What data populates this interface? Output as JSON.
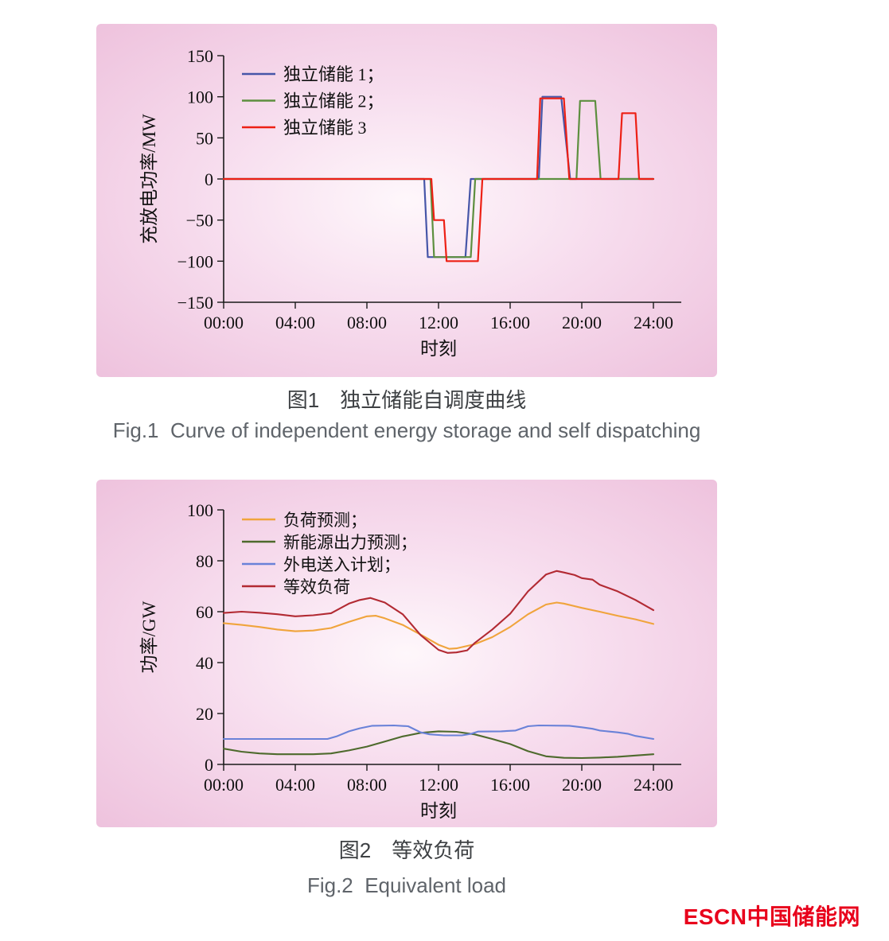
{
  "figures": [
    {
      "caption_cn": "图1　独立储能自调度曲线",
      "caption_en": "Fig.1  Curve of independent energy storage and self dispatching"
    },
    {
      "caption_cn": "图2　等效负荷",
      "caption_en": "Fig.2  Equivalent load"
    }
  ],
  "logo": {
    "latin": "ESCN",
    "cn": "中国储能网",
    "color": "#e8001b"
  },
  "chart_data": [
    {
      "type": "line",
      "title": "",
      "xlabel": "时刻",
      "ylabel": "充放电功率/MW",
      "xlim": [
        0,
        24
      ],
      "ylim": [
        -150,
        150
      ],
      "xticks": [
        0,
        4,
        8,
        12,
        16,
        20,
        24
      ],
      "xtick_labels": [
        "00:00",
        "04:00",
        "08:00",
        "12:00",
        "16:00",
        "20:00",
        "24:00"
      ],
      "yticks": [
        -150,
        -100,
        -50,
        0,
        50,
        100,
        150
      ],
      "ytick_labels": [
        "−150",
        "−100",
        "−50",
        "0",
        "50",
        "100",
        "150"
      ],
      "grid": false,
      "legend_position": "top-left",
      "background": {
        "center": "#fef7fb",
        "mid": "#f7ddee",
        "edge": "#eec2dd"
      },
      "series": [
        {
          "name": "独立储能 1；",
          "color": "#4656a8",
          "points": [
            [
              0,
              0
            ],
            [
              11.2,
              0
            ],
            [
              11.4,
              -95
            ],
            [
              13.5,
              -95
            ],
            [
              13.8,
              0
            ],
            [
              17.6,
              0
            ],
            [
              17.8,
              100
            ],
            [
              18.85,
              100
            ],
            [
              19.35,
              0
            ],
            [
              24,
              0
            ]
          ]
        },
        {
          "name": "独立储能 2；",
          "color": "#5d8f3f",
          "points": [
            [
              0,
              0
            ],
            [
              11.55,
              0
            ],
            [
              11.75,
              -95
            ],
            [
              13.8,
              -95
            ],
            [
              14.05,
              0
            ],
            [
              19.7,
              0
            ],
            [
              19.9,
              95
            ],
            [
              20.75,
              95
            ],
            [
              21.05,
              0
            ],
            [
              24,
              0
            ]
          ]
        },
        {
          "name": "独立储能 3",
          "color": "#ed2015",
          "points": [
            [
              0,
              0
            ],
            [
              11.6,
              0
            ],
            [
              11.75,
              -50
            ],
            [
              12.3,
              -50
            ],
            [
              12.45,
              -100
            ],
            [
              14.2,
              -100
            ],
            [
              14.45,
              0
            ],
            [
              17.5,
              0
            ],
            [
              17.68,
              98
            ],
            [
              19.0,
              98
            ],
            [
              19.3,
              0
            ],
            [
              22.05,
              0
            ],
            [
              22.25,
              80
            ],
            [
              23.0,
              80
            ],
            [
              23.2,
              0
            ],
            [
              24,
              0
            ]
          ]
        }
      ]
    },
    {
      "type": "line",
      "title": "",
      "xlabel": "时刻",
      "ylabel": "功率/GW",
      "xlim": [
        0,
        24
      ],
      "ylim": [
        0,
        100
      ],
      "xticks": [
        0,
        4,
        8,
        12,
        16,
        20,
        24
      ],
      "xtick_labels": [
        "00:00",
        "04:00",
        "08:00",
        "12:00",
        "16:00",
        "20:00",
        "24:00"
      ],
      "yticks": [
        0,
        20,
        40,
        60,
        80,
        100
      ],
      "ytick_labels": [
        "0",
        "20",
        "40",
        "60",
        "80",
        "100"
      ],
      "grid": false,
      "legend_position": "top-left",
      "background": {
        "center": "#fef7fb",
        "mid": "#f7ddee",
        "edge": "#eec2dd"
      },
      "series": [
        {
          "name": "负荷预测；",
          "color": "#f0a43c",
          "points": [
            [
              0,
              55.5
            ],
            [
              1,
              54.8
            ],
            [
              2,
              54
            ],
            [
              3,
              53
            ],
            [
              4,
              52.3
            ],
            [
              5,
              52.6
            ],
            [
              6,
              53.6
            ],
            [
              7,
              56
            ],
            [
              8,
              58.2
            ],
            [
              8.5,
              58.4
            ],
            [
              9,
              57.4
            ],
            [
              10,
              54.8
            ],
            [
              11,
              51
            ],
            [
              12,
              47
            ],
            [
              12.6,
              45.4
            ],
            [
              13,
              45.6
            ],
            [
              14,
              47.2
            ],
            [
              15,
              50
            ],
            [
              16,
              54
            ],
            [
              17,
              59
            ],
            [
              18,
              62.8
            ],
            [
              18.6,
              63.6
            ],
            [
              19,
              63.2
            ],
            [
              20,
              61.5
            ],
            [
              21,
              60
            ],
            [
              22,
              58.4
            ],
            [
              23,
              57
            ],
            [
              24,
              55.2
            ]
          ]
        },
        {
          "name": "新能源出力预测；",
          "color": "#4e6a2d",
          "points": [
            [
              0,
              6.2
            ],
            [
              1,
              5
            ],
            [
              2,
              4.3
            ],
            [
              3,
              4
            ],
            [
              4,
              4
            ],
            [
              5,
              4
            ],
            [
              6,
              4.3
            ],
            [
              7,
              5.5
            ],
            [
              8,
              7
            ],
            [
              9,
              9
            ],
            [
              10,
              11
            ],
            [
              11,
              12.4
            ],
            [
              12,
              13
            ],
            [
              13,
              12.8
            ],
            [
              14,
              11.8
            ],
            [
              15,
              10
            ],
            [
              16,
              8
            ],
            [
              17,
              5.2
            ],
            [
              18,
              3.2
            ],
            [
              19,
              2.6
            ],
            [
              20,
              2.5
            ],
            [
              21,
              2.7
            ],
            [
              22,
              3
            ],
            [
              23,
              3.5
            ],
            [
              24,
              4
            ]
          ]
        },
        {
          "name": "外电送入计划；",
          "color": "#6a82d8",
          "points": [
            [
              0,
              10
            ],
            [
              5.8,
              10
            ],
            [
              6.3,
              11
            ],
            [
              7,
              13
            ],
            [
              7.6,
              14.2
            ],
            [
              8.3,
              15.2
            ],
            [
              9.5,
              15.3
            ],
            [
              10.3,
              15
            ],
            [
              11,
              12.6
            ],
            [
              11.5,
              11.8
            ],
            [
              12.3,
              11.4
            ],
            [
              13.3,
              11.4
            ],
            [
              13.8,
              12
            ],
            [
              14.2,
              12.9
            ],
            [
              15.5,
              13
            ],
            [
              16.3,
              13.3
            ],
            [
              17,
              15
            ],
            [
              17.6,
              15.3
            ],
            [
              19.3,
              15.2
            ],
            [
              20,
              14.6
            ],
            [
              20.6,
              14
            ],
            [
              21,
              13.3
            ],
            [
              22,
              12.6
            ],
            [
              22.6,
              12
            ],
            [
              23,
              11.2
            ],
            [
              24,
              10
            ]
          ]
        },
        {
          "name": "等效负荷",
          "color": "#b22a33",
          "points": [
            [
              0,
              59.5
            ],
            [
              1,
              60
            ],
            [
              2,
              59.6
            ],
            [
              3,
              59
            ],
            [
              4,
              58.2
            ],
            [
              5,
              58.6
            ],
            [
              6,
              59.4
            ],
            [
              7,
              63.2
            ],
            [
              7.6,
              64.6
            ],
            [
              8.2,
              65.4
            ],
            [
              9,
              63.6
            ],
            [
              10,
              59
            ],
            [
              11,
              50.8
            ],
            [
              12,
              45
            ],
            [
              12.5,
              43.8
            ],
            [
              13,
              44
            ],
            [
              13.6,
              44.8
            ],
            [
              14,
              47.6
            ],
            [
              15,
              53
            ],
            [
              16,
              59.2
            ],
            [
              17,
              68
            ],
            [
              18,
              74.6
            ],
            [
              18.6,
              76
            ],
            [
              19,
              75.4
            ],
            [
              19.6,
              74.4
            ],
            [
              20,
              73.2
            ],
            [
              20.6,
              72.6
            ],
            [
              21,
              70.6
            ],
            [
              22,
              68
            ],
            [
              23,
              64.6
            ],
            [
              24,
              60.6
            ]
          ]
        }
      ]
    }
  ]
}
